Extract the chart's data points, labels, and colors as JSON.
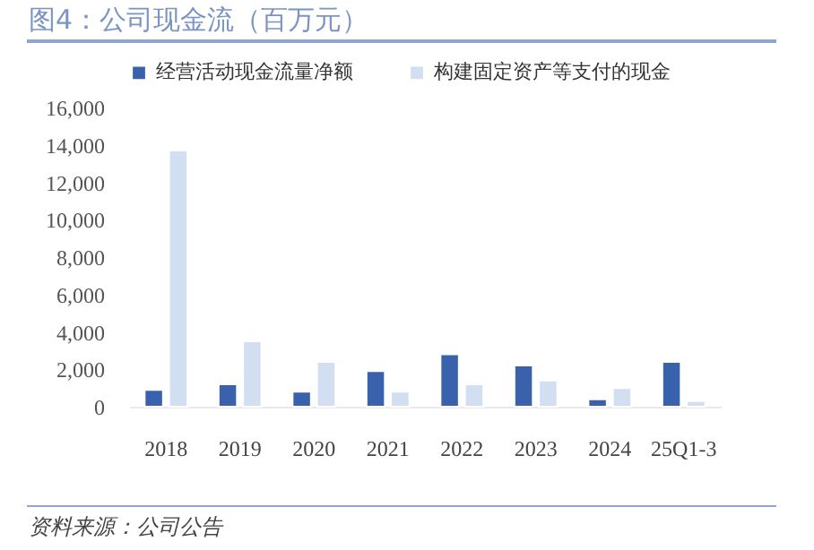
{
  "chart_data": {
    "type": "bar",
    "title": "图4：公司现金流（百万元）",
    "categories": [
      "2018",
      "2019",
      "2020",
      "2021",
      "2022",
      "2023",
      "2024",
      "25Q1-3"
    ],
    "series": [
      {
        "name": "经营活动现金流量净额",
        "color": "#3a62ac",
        "values": [
          900,
          1200,
          800,
          1900,
          2800,
          2200,
          400,
          2400
        ]
      },
      {
        "name": "构建固定资产等支付的现金",
        "color": "#d2dff1",
        "values": [
          13700,
          3500,
          2400,
          800,
          1200,
          1400,
          1000,
          300
        ]
      }
    ],
    "ylim": [
      0,
      16000
    ],
    "yticks": [
      0,
      {
        "value": 2000,
        "label": "2,000"
      },
      {
        "value": 4000,
        "label": "4,000"
      },
      {
        "value": 6000,
        "label": "6,000"
      },
      {
        "value": 8000,
        "label": "8,000"
      },
      {
        "value": 10000,
        "label": "10,000"
      },
      {
        "value": 12000,
        "label": "12,000"
      },
      {
        "value": 14000,
        "label": "14,000"
      },
      {
        "value": 16000,
        "label": "16,000"
      }
    ],
    "grid": false,
    "legend": "top",
    "annotations": [
      "资料来源：公司公告"
    ]
  }
}
